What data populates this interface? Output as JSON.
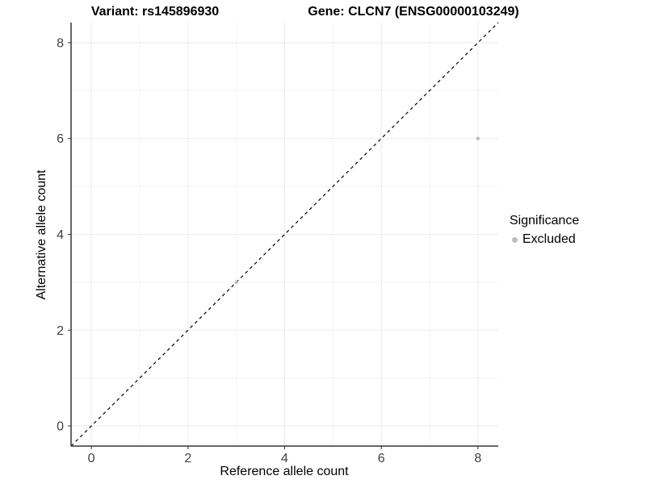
{
  "titles": {
    "variant": "Variant: rs145896930",
    "gene": "Gene: CLCN7 (ENSG00000103249)"
  },
  "axes": {
    "x_label": "Reference allele count",
    "y_label": "Alternative allele count"
  },
  "legend": {
    "title": "Significance",
    "items": [
      {
        "label": "Excluded",
        "color": "#bdbdbd"
      }
    ]
  },
  "colors": {
    "background": "#ffffff",
    "grid_major": "#ebebeb",
    "grid_minor": "#f3f3f3",
    "axis_line": "#333333",
    "tick_text": "#404040",
    "point": "#bdbdbd",
    "identity_line": "#000000"
  },
  "chart_data": {
    "type": "scatter",
    "title": "Variant: rs145896930 — Gene: CLCN7 (ENSG00000103249)",
    "xlabel": "Reference allele count",
    "ylabel": "Alternative allele count",
    "xlim": [
      -0.42,
      8.42
    ],
    "ylim": [
      -0.42,
      8.42
    ],
    "x_ticks": [
      0,
      2,
      4,
      6,
      8
    ],
    "y_ticks": [
      0,
      2,
      4,
      6,
      8
    ],
    "x_minor_ticks": [
      1,
      3,
      5,
      7
    ],
    "y_minor_ticks": [
      1,
      3,
      5,
      7
    ],
    "grid": true,
    "legend_position": "right",
    "identity_line": {
      "slope": 1,
      "intercept": 0,
      "style": "dashed",
      "color": "#000000"
    },
    "series": [
      {
        "name": "Excluded",
        "color": "#bdbdbd",
        "point_radius": 2.2,
        "points": [
          {
            "x": 3,
            "y": 3
          },
          {
            "x": 8,
            "y": 6
          }
        ]
      }
    ]
  }
}
